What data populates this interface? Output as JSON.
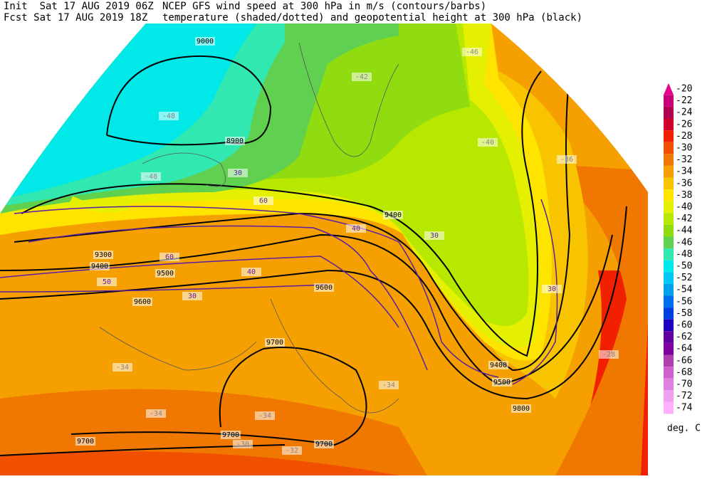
{
  "header": {
    "init": "Init  Sat 17 AUG 2019 06Z",
    "fcst": "Fcst Sat 17 AUG 2019 18Z",
    "line1": "NCEP GFS wind speed at 300 hPa in m/s (contours/barbs)",
    "line2": "temperature (shaded/dotted) and geopotential height at 300 hPa (black)"
  },
  "colorbar": {
    "levels": [
      -20,
      -22,
      -24,
      -26,
      -28,
      -30,
      -32,
      -34,
      -36,
      -38,
      -40,
      -42,
      -44,
      -46,
      -48,
      -50,
      -52,
      -54,
      -56,
      -58,
      -60,
      -62,
      -64,
      -66,
      -68,
      -70,
      -72,
      -74
    ],
    "colors": [
      "#e8008c",
      "#c8007a",
      "#b00050",
      "#d0002a",
      "#f02000",
      "#f05000",
      "#f07800",
      "#f5a000",
      "#f8c400",
      "#ffe400",
      "#e4f000",
      "#b8e800",
      "#90dc10",
      "#60d050",
      "#30e8b0",
      "#00e8e8",
      "#00c8f4",
      "#00a0f0",
      "#0070f0",
      "#0040e0",
      "#2000c0",
      "#6000a0",
      "#8000a0",
      "#b040b0",
      "#d060d0",
      "#e080e0",
      "#f0a0f0",
      "#ffb0ff"
    ],
    "unit": "deg. C"
  },
  "map_labels": [
    "9000",
    "8900",
    "9300",
    "9400",
    "9500",
    "9600",
    "9400",
    "9600",
    "9700",
    "9700",
    "9700",
    "9700",
    "9800",
    "9400",
    "9500",
    "30",
    "40",
    "50",
    "60",
    "60",
    "40",
    "30",
    "30",
    "30",
    "-42",
    "-48",
    "-48",
    "-46",
    "-40",
    "-36",
    "-34",
    "-34",
    "-34",
    "-32",
    "-30",
    "-28",
    "-34"
  ]
}
